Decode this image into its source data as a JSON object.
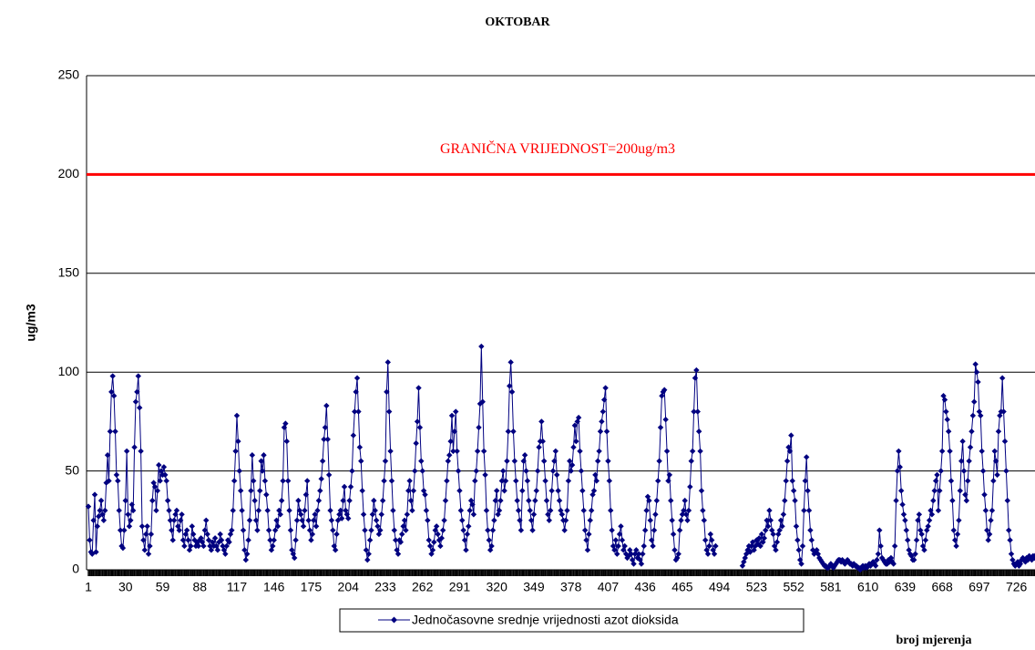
{
  "chart_data": {
    "type": "line",
    "title": "OKTOBAR",
    "y_label": "ug/m3",
    "x_label": "broj mjerenja",
    "threshold": {
      "value": 200,
      "label": "GRANIČNA VRIJEDNOST=200ug/m3",
      "color": "#ff0000"
    },
    "ylim": [
      0,
      250
    ],
    "yticks": [
      0,
      50,
      100,
      150,
      200,
      250
    ],
    "grid": true,
    "legend": "bottom",
    "categories": [
      1,
      null,
      null,
      null,
      null,
      null,
      null,
      null,
      null,
      null,
      null,
      null,
      null,
      null,
      null,
      null,
      null,
      null,
      null,
      null,
      null,
      null,
      null,
      null,
      null,
      null,
      null,
      null,
      null,
      30,
      null,
      null,
      null,
      null,
      null,
      null,
      null,
      null,
      null,
      null,
      null,
      null,
      null,
      null,
      null,
      null,
      null,
      null,
      null,
      null,
      null,
      null,
      null,
      null,
      null,
      null,
      null,
      null,
      59,
      null,
      null,
      null,
      null,
      null,
      null,
      null,
      null,
      null,
      null,
      null,
      null,
      null,
      null,
      null,
      null,
      null,
      null,
      null,
      null,
      null,
      null,
      null,
      null,
      null,
      null,
      null,
      null,
      88,
      null,
      null,
      null,
      null,
      null,
      null,
      null,
      null,
      null,
      null,
      null,
      null,
      null,
      null,
      null,
      null,
      null,
      null,
      null,
      null,
      null,
      null,
      null,
      null,
      null,
      null,
      null,
      null,
      117,
      null,
      null,
      null,
      null,
      null,
      null,
      null,
      null,
      null,
      null,
      null,
      null,
      null,
      null,
      null,
      null,
      null,
      null,
      null,
      null,
      null,
      null,
      null,
      null,
      null,
      null,
      null,
      null,
      146,
      null,
      null,
      null,
      null,
      null,
      null,
      null,
      null,
      null,
      null,
      null,
      null,
      null,
      null,
      null,
      null,
      null,
      null,
      null,
      null,
      null,
      null,
      null,
      null,
      null,
      null,
      null,
      null,
      175,
      null,
      null,
      null,
      null,
      null,
      null,
      null,
      null,
      null,
      null,
      null,
      null,
      null,
      null,
      null,
      null,
      null,
      null,
      null,
      null,
      null,
      null,
      null,
      null,
      null,
      null,
      null,
      null,
      204,
      null,
      null,
      null,
      null,
      null,
      null,
      null,
      null,
      null,
      null,
      null,
      null,
      null,
      null,
      null,
      null,
      null,
      null,
      null,
      null,
      null,
      null,
      null,
      null,
      null,
      null,
      null,
      null,
      233,
      null,
      null,
      null,
      null,
      null,
      null,
      null,
      null,
      null,
      null,
      null,
      null,
      null,
      null,
      null,
      null,
      null,
      null,
      null,
      null,
      null,
      null,
      null,
      null,
      null,
      null,
      null,
      null,
      262,
      null,
      null,
      null,
      null,
      null,
      null,
      null,
      null,
      null,
      null,
      null,
      null,
      null,
      null,
      null,
      null,
      null,
      null,
      null,
      null,
      null,
      null,
      null,
      null,
      null,
      null,
      null,
      null,
      291,
      null,
      null,
      null,
      null,
      null,
      null,
      null,
      null,
      null,
      null,
      null,
      null,
      null,
      null,
      null,
      null,
      null,
      null,
      null,
      null,
      null,
      null,
      null,
      null,
      null,
      null,
      null,
      null,
      320,
      null,
      null,
      null,
      null,
      null,
      null,
      null,
      null,
      null,
      null,
      null,
      null,
      null,
      null,
      null,
      null,
      null,
      null,
      null,
      null,
      null,
      null,
      null,
      null,
      null,
      null,
      null,
      null,
      349,
      null,
      null,
      null,
      null,
      null,
      null,
      null,
      null,
      null,
      null,
      null,
      null,
      null,
      null,
      null,
      null,
      null,
      null,
      null,
      null,
      null,
      null,
      null,
      null,
      null,
      null,
      null,
      null,
      378,
      null,
      null,
      null,
      null,
      null,
      null,
      null,
      null,
      null,
      null,
      null,
      null,
      null,
      null,
      null,
      null,
      null,
      null,
      null,
      null,
      null,
      null,
      null,
      null,
      null,
      null,
      null,
      null,
      407,
      null,
      null,
      null,
      null,
      null,
      null,
      null,
      null,
      null,
      null,
      null,
      null,
      null,
      null,
      null,
      null,
      null,
      null,
      null,
      null,
      null,
      null,
      null,
      null,
      null,
      null,
      null,
      null,
      436,
      null,
      null,
      null,
      null,
      null,
      null,
      null,
      null,
      null,
      null,
      null,
      null,
      null,
      null,
      null,
      null,
      null,
      null,
      null,
      null,
      null,
      null,
      null,
      null,
      null,
      null,
      null,
      null,
      465,
      null,
      null,
      null,
      null,
      null,
      null,
      null,
      null,
      null,
      null,
      null,
      null,
      null,
      null,
      null,
      null,
      null,
      null,
      null,
      null,
      null,
      null,
      null,
      null,
      null,
      null,
      null,
      null,
      494,
      null,
      null,
      null,
      null,
      null,
      null,
      null,
      null,
      null,
      null,
      null,
      null,
      null,
      null,
      null,
      null,
      null,
      null,
      null,
      null,
      null,
      null,
      null,
      null,
      null,
      null,
      null,
      null,
      523,
      null,
      null,
      null,
      null,
      null,
      null,
      null,
      null,
      null,
      null,
      null,
      null,
      null,
      null,
      null,
      null,
      null,
      null,
      null,
      null,
      null,
      null,
      null,
      null,
      null,
      null,
      null,
      null,
      552,
      null,
      null,
      null,
      null,
      null,
      null,
      null,
      null,
      null,
      null,
      null,
      null,
      null,
      null,
      null,
      null,
      null,
      null,
      null,
      null,
      null,
      null,
      null,
      null,
      null,
      null,
      null,
      null,
      581,
      null,
      null,
      null,
      null,
      null,
      null,
      null,
      null,
      null,
      null,
      null,
      null,
      null,
      null,
      null,
      null,
      null,
      null,
      null,
      null,
      null,
      null,
      null,
      null,
      null,
      null,
      null,
      null,
      610,
      null,
      null,
      null,
      null,
      null,
      null,
      null,
      null,
      null,
      null,
      null,
      null,
      null,
      null,
      null,
      null,
      null,
      null,
      null,
      null,
      null,
      null,
      null,
      null,
      null,
      null,
      null,
      null,
      639,
      null,
      null,
      null,
      null,
      null,
      null,
      null,
      null,
      null,
      null,
      null,
      null,
      null,
      null,
      null,
      null,
      null,
      null,
      null,
      null,
      null,
      null,
      null,
      null,
      null,
      null,
      null,
      null,
      668,
      null,
      null,
      null,
      null,
      null,
      null,
      null,
      null,
      null,
      null,
      null,
      null,
      null,
      null,
      null,
      null,
      null,
      null,
      null,
      null,
      null,
      null,
      null,
      null,
      null,
      null,
      null,
      null,
      697,
      null,
      null,
      null,
      null,
      null,
      null,
      null,
      null,
      null,
      null,
      null,
      null,
      null,
      null,
      null,
      null,
      null,
      null,
      null,
      null,
      null,
      null,
      null,
      null,
      null,
      null,
      null,
      null,
      726,
      null,
      null,
      null,
      null,
      null,
      null,
      null,
      null,
      null,
      null,
      null,
      null,
      null,
      null,
      null,
      null,
      null,
      null
    ],
    "series": [
      {
        "name": "Jednočasovne srednje vrijednosti azot dioksida",
        "color": "#000080",
        "values": [
          32,
          15,
          9,
          8,
          25,
          38,
          9,
          22,
          27,
          30,
          35,
          28,
          25,
          30,
          44,
          58,
          45,
          70,
          90,
          98,
          88,
          70,
          48,
          45,
          30,
          20,
          12,
          11,
          20,
          35,
          60,
          28,
          22,
          25,
          33,
          30,
          62,
          85,
          90,
          98,
          82,
          60,
          22,
          15,
          10,
          18,
          22,
          8,
          12,
          18,
          35,
          44,
          42,
          30,
          40,
          53,
          45,
          50,
          48,
          52,
          48,
          45,
          35,
          30,
          25,
          20,
          15,
          25,
          28,
          30,
          22,
          20,
          25,
          28,
          15,
          12,
          18,
          20,
          15,
          10,
          12,
          22,
          18,
          15,
          12,
          14,
          12,
          15,
          16,
          14,
          12,
          20,
          25,
          18,
          15,
          12,
          10,
          14,
          12,
          16,
          12,
          10,
          14,
          18,
          15,
          12,
          10,
          8,
          12,
          15,
          14,
          18,
          20,
          30,
          45,
          60,
          78,
          65,
          50,
          40,
          30,
          20,
          10,
          5,
          8,
          15,
          25,
          40,
          58,
          45,
          35,
          25,
          20,
          30,
          40,
          55,
          50,
          58,
          45,
          38,
          30,
          20,
          15,
          10,
          12,
          15,
          20,
          25,
          22,
          30,
          28,
          35,
          45,
          72,
          74,
          65,
          45,
          30,
          20,
          10,
          8,
          6,
          15,
          25,
          35,
          30,
          28,
          25,
          22,
          30,
          38,
          45,
          25,
          20,
          15,
          18,
          25,
          28,
          22,
          30,
          35,
          40,
          46,
          55,
          66,
          72,
          83,
          66,
          48,
          30,
          25,
          20,
          12,
          10,
          18,
          25,
          28,
          30,
          26,
          35,
          42,
          30,
          28,
          26,
          35,
          42,
          50,
          68,
          80,
          90,
          97,
          80,
          62,
          55,
          40,
          28,
          20,
          10,
          5,
          8,
          15,
          20,
          28,
          35,
          30,
          25,
          22,
          18,
          20,
          28,
          35,
          45,
          55,
          90,
          105,
          80,
          60,
          45,
          30,
          20,
          15,
          10,
          8,
          15,
          14,
          18,
          22,
          25,
          20,
          28,
          40,
          45,
          35,
          30,
          40,
          50,
          64,
          75,
          92,
          72,
          55,
          50,
          40,
          38,
          30,
          25,
          15,
          12,
          8,
          10,
          14,
          20,
          22,
          18,
          15,
          12,
          16,
          20,
          25,
          35,
          45,
          55,
          58,
          65,
          78,
          60,
          70,
          80,
          60,
          50,
          40,
          30,
          25,
          20,
          15,
          10,
          18,
          22,
          30,
          35,
          33,
          28,
          45,
          50,
          60,
          72,
          84,
          113,
          85,
          60,
          48,
          30,
          20,
          15,
          10,
          12,
          20,
          25,
          35,
          40,
          28,
          30,
          35,
          45,
          50,
          40,
          45,
          55,
          70,
          93,
          105,
          90,
          70,
          55,
          45,
          35,
          30,
          25,
          20,
          40,
          55,
          58,
          50,
          45,
          35,
          30,
          25,
          20,
          28,
          35,
          40,
          50,
          62,
          65,
          75,
          65,
          55,
          45,
          35,
          28,
          25,
          30,
          40,
          50,
          55,
          60,
          48,
          40,
          35,
          30,
          28,
          25,
          20,
          25,
          30,
          45,
          55,
          50,
          53,
          62,
          73,
          65,
          75,
          77,
          60,
          50,
          40,
          30,
          20,
          15,
          10,
          18,
          25,
          30,
          38,
          40,
          48,
          45,
          55,
          60,
          70,
          75,
          80,
          86,
          92,
          70,
          55,
          45,
          30,
          20,
          12,
          10,
          15,
          8,
          12,
          18,
          22,
          15,
          10,
          12,
          8,
          6,
          7,
          10,
          8,
          5,
          3,
          8,
          10,
          6,
          8,
          5,
          3,
          8,
          12,
          20,
          30,
          37,
          35,
          25,
          15,
          12,
          20,
          28,
          35,
          45,
          55,
          72,
          88,
          90,
          91,
          76,
          60,
          45,
          48,
          35,
          25,
          18,
          10,
          5,
          6,
          8,
          20,
          25,
          28,
          30,
          35,
          28,
          25,
          30,
          42,
          55,
          60,
          80,
          97,
          101,
          80,
          70,
          60,
          40,
          30,
          25,
          15,
          10,
          8,
          12,
          18,
          15,
          10,
          8,
          12,
          null,
          null,
          null,
          null,
          null,
          null,
          null,
          null,
          null,
          null,
          null,
          null,
          null,
          null,
          null,
          null,
          null,
          null,
          null,
          null,
          2,
          4,
          6,
          8,
          10,
          12,
          9,
          12,
          14,
          10,
          12,
          15,
          13,
          16,
          12,
          18,
          14,
          16,
          20,
          25,
          22,
          30,
          25,
          20,
          18,
          12,
          10,
          14,
          18,
          20,
          25,
          22,
          28,
          35,
          45,
          55,
          62,
          60,
          68,
          45,
          40,
          35,
          22,
          15,
          10,
          5,
          3,
          12,
          30,
          45,
          57,
          40,
          30,
          20,
          15,
          10,
          8,
          9,
          10,
          8,
          6,
          5,
          4,
          3,
          2,
          2,
          1,
          1,
          2,
          3,
          2,
          1,
          2,
          3,
          4,
          5,
          5,
          4,
          5,
          4,
          3,
          4,
          5,
          4,
          3,
          3,
          2,
          3,
          2,
          2,
          1,
          1,
          0,
          1,
          2,
          1,
          2,
          1,
          2,
          3,
          2,
          3,
          4,
          3,
          2,
          5,
          8,
          20,
          12,
          6,
          5,
          4,
          3,
          3,
          5,
          4,
          6,
          4,
          3,
          12,
          35,
          50,
          60,
          52,
          40,
          33,
          28,
          25,
          20,
          15,
          10,
          8,
          7,
          5,
          5,
          8,
          15,
          25,
          28,
          20,
          18,
          12,
          10,
          15,
          20,
          22,
          25,
          30,
          28,
          35,
          40,
          45,
          48,
          30,
          40,
          50,
          60,
          88,
          86,
          80,
          76,
          70,
          60,
          45,
          35,
          20,
          15,
          12,
          18,
          25,
          40,
          55,
          65,
          50,
          38,
          35,
          45,
          55,
          62,
          70,
          78,
          85,
          104,
          100,
          95,
          80,
          78,
          60,
          50,
          38,
          30,
          20,
          15,
          18,
          25,
          30,
          45,
          60,
          55,
          48,
          70,
          78,
          80,
          97,
          80,
          65,
          50,
          35,
          20,
          15,
          8,
          5,
          3,
          2,
          3,
          4,
          2,
          3,
          5,
          6,
          5,
          4,
          6,
          5,
          7,
          6,
          5,
          7,
          6,
          7,
          8,
          7,
          6
        ]
      }
    ]
  }
}
